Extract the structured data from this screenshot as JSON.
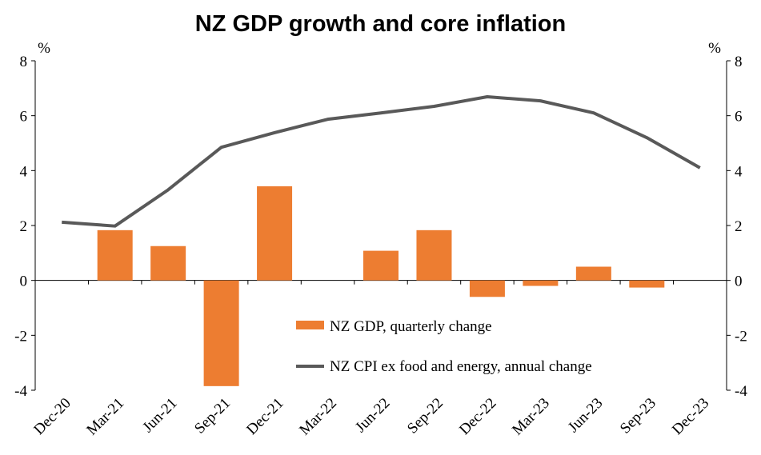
{
  "chart_data": {
    "type": "bar+line",
    "title": "NZ GDP growth and core inflation",
    "ylabel_left": "%",
    "ylabel_right": "%",
    "ylim": [
      -4,
      8
    ],
    "yticks": [
      "8",
      "6",
      "4",
      "2",
      "0",
      "-2",
      "-4"
    ],
    "categories": [
      "Dec-20",
      "Mar-21",
      "Jun-21",
      "Sep-21",
      "Dec-21",
      "Mar-22",
      "Jun-22",
      "Sep-22",
      "Dec-22",
      "Mar-23",
      "Jun-23",
      "Sep-23",
      "Dec-23"
    ],
    "series": [
      {
        "name": "NZ GDP, quarterly change",
        "type": "bar",
        "color": "#ED7D31",
        "values": [
          null,
          1.83,
          1.25,
          -3.85,
          3.43,
          0.0,
          1.08,
          1.83,
          -0.6,
          -0.2,
          0.5,
          -0.26,
          null
        ]
      },
      {
        "name": "NZ CPI ex food and energy, annual change",
        "type": "line",
        "color": "#595959",
        "values": [
          2.12,
          1.98,
          3.3,
          4.85,
          5.38,
          5.87,
          6.1,
          6.34,
          6.69,
          6.54,
          6.1,
          5.2,
          4.1
        ]
      }
    ],
    "legend": "center-bottom"
  }
}
